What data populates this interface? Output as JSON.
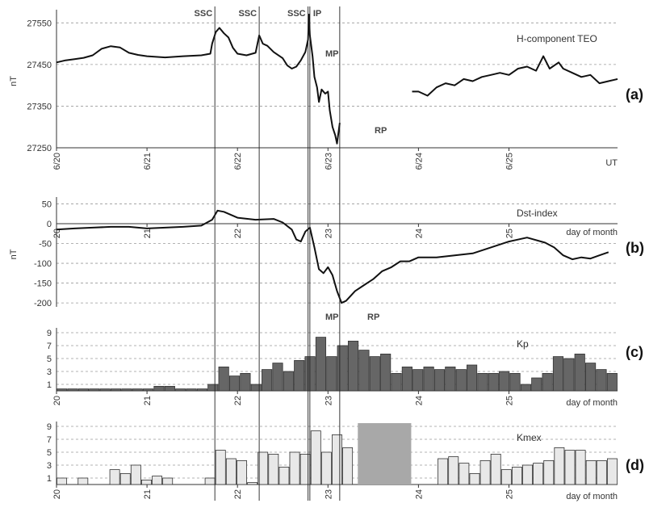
{
  "chart_data": [
    {
      "panel": "a",
      "type": "line",
      "panel_label": "(a)",
      "series_label": "H-component TEO",
      "ylabel": "nT",
      "xlabel": "UT",
      "xticks": [
        "6/20",
        "6/21",
        "6/22",
        "6/23",
        "6/24",
        "6/25"
      ],
      "ylim": [
        27250,
        27570
      ],
      "yticks": [
        27250,
        27350,
        27450,
        27550
      ],
      "grid": true,
      "series": [
        {
          "segments": [
            [
              [
                20.0,
                27455
              ],
              [
                20.1,
                27460
              ],
              [
                20.2,
                27463
              ],
              [
                20.3,
                27466
              ],
              [
                20.4,
                27472
              ],
              [
                20.5,
                27488
              ],
              [
                20.6,
                27494
              ],
              [
                20.7,
                27491
              ],
              [
                20.8,
                27478
              ],
              [
                20.9,
                27473
              ],
              [
                21.0,
                27470
              ],
              [
                21.2,
                27467
              ],
              [
                21.4,
                27470
              ],
              [
                21.6,
                27472
              ],
              [
                21.7,
                27476
              ],
              [
                21.72,
                27500
              ],
              [
                21.76,
                27528
              ],
              [
                21.8,
                27538
              ],
              [
                21.85,
                27525
              ],
              [
                21.9,
                27515
              ],
              [
                21.95,
                27490
              ],
              [
                22.0,
                27476
              ],
              [
                22.1,
                27472
              ],
              [
                22.2,
                27478
              ],
              [
                22.24,
                27520
              ],
              [
                22.28,
                27500
              ],
              [
                22.33,
                27495
              ],
              [
                22.4,
                27480
              ],
              [
                22.5,
                27465
              ],
              [
                22.55,
                27448
              ],
              [
                22.6,
                27440
              ],
              [
                22.65,
                27445
              ],
              [
                22.7,
                27460
              ],
              [
                22.75,
                27480
              ],
              [
                22.78,
                27510
              ],
              [
                22.79,
                27570
              ],
              [
                22.8,
                27520
              ],
              [
                22.83,
                27470
              ],
              [
                22.85,
                27420
              ],
              [
                22.88,
                27395
              ],
              [
                22.9,
                27360
              ],
              [
                22.93,
                27390
              ],
              [
                22.97,
                27380
              ],
              [
                23.0,
                27385
              ],
              [
                23.02,
                27340
              ],
              [
                23.05,
                27300
              ],
              [
                23.08,
                27280
              ],
              [
                23.1,
                27260
              ],
              [
                23.13,
                27310
              ]
            ],
            [
              [
                23.93,
                27385
              ],
              [
                24.0,
                27385
              ],
              [
                24.1,
                27375
              ],
              [
                24.2,
                27395
              ],
              [
                24.3,
                27405
              ],
              [
                24.4,
                27400
              ],
              [
                24.5,
                27415
              ],
              [
                24.6,
                27410
              ],
              [
                24.7,
                27420
              ],
              [
                24.8,
                27425
              ],
              [
                24.9,
                27430
              ],
              [
                25.0,
                27425
              ],
              [
                25.1,
                27440
              ],
              [
                25.2,
                27445
              ],
              [
                25.3,
                27435
              ],
              [
                25.38,
                27470
              ],
              [
                25.45,
                27440
              ],
              [
                25.55,
                27455
              ],
              [
                25.6,
                27440
              ],
              [
                25.7,
                27430
              ],
              [
                25.8,
                27420
              ],
              [
                25.9,
                27425
              ],
              [
                26.0,
                27405
              ],
              [
                26.1,
                27410
              ],
              [
                26.2,
                27415
              ]
            ]
          ]
        }
      ],
      "annotations": [
        "SSC",
        "SSC",
        "SSC",
        "IP",
        "MP",
        "RP"
      ]
    },
    {
      "panel": "b",
      "type": "line",
      "panel_label": "(b)",
      "series_label": "Dst-index",
      "ylabel": "nT",
      "xlabel": "day of month",
      "xticks": [
        "20",
        "21",
        "22",
        "23",
        "24",
        "25"
      ],
      "ylim": [
        -210,
        55
      ],
      "yticks": [
        50,
        0,
        -50,
        -100,
        -150,
        -200
      ],
      "grid": true,
      "series": [
        {
          "values": [
            [
              20.0,
              -15
            ],
            [
              20.2,
              -12
            ],
            [
              20.4,
              -10
            ],
            [
              20.6,
              -8
            ],
            [
              20.8,
              -8
            ],
            [
              21.0,
              -12
            ],
            [
              21.2,
              -10
            ],
            [
              21.4,
              -8
            ],
            [
              21.6,
              -5
            ],
            [
              21.72,
              10
            ],
            [
              21.78,
              33
            ],
            [
              21.85,
              30
            ],
            [
              22.0,
              15
            ],
            [
              22.2,
              10
            ],
            [
              22.4,
              12
            ],
            [
              22.5,
              3
            ],
            [
              22.6,
              -15
            ],
            [
              22.65,
              -40
            ],
            [
              22.7,
              -45
            ],
            [
              22.75,
              -20
            ],
            [
              22.8,
              -10
            ],
            [
              22.85,
              -60
            ],
            [
              22.9,
              -115
            ],
            [
              22.95,
              -125
            ],
            [
              23.0,
              -110
            ],
            [
              23.05,
              -130
            ],
            [
              23.1,
              -170
            ],
            [
              23.15,
              -200
            ],
            [
              23.2,
              -195
            ],
            [
              23.3,
              -170
            ],
            [
              23.4,
              -155
            ],
            [
              23.5,
              -140
            ],
            [
              23.6,
              -120
            ],
            [
              23.7,
              -110
            ],
            [
              23.8,
              -95
            ],
            [
              23.9,
              -95
            ],
            [
              24.0,
              -85
            ],
            [
              24.2,
              -85
            ],
            [
              24.4,
              -80
            ],
            [
              24.6,
              -75
            ],
            [
              24.8,
              -60
            ],
            [
              25.0,
              -45
            ],
            [
              25.2,
              -35
            ],
            [
              25.4,
              -48
            ],
            [
              25.5,
              -60
            ],
            [
              25.6,
              -80
            ],
            [
              25.7,
              -90
            ],
            [
              25.8,
              -85
            ],
            [
              25.9,
              -88
            ],
            [
              26.0,
              -80
            ],
            [
              26.1,
              -72
            ]
          ]
        }
      ],
      "annotations": [
        "MP",
        "RP"
      ]
    },
    {
      "panel": "c",
      "type": "bar",
      "panel_label": "(c)",
      "series_label": "Kp",
      "xlabel": "day of month",
      "xticks": [
        "20",
        "21",
        "22",
        "23",
        "24",
        "25"
      ],
      "ylim": [
        0,
        9
      ],
      "yticks": [
        1,
        3,
        5,
        7,
        9
      ],
      "grid": true,
      "bar_color": "#666666",
      "values": [
        0.3,
        0.3,
        0.3,
        0.3,
        0.3,
        0.3,
        0.3,
        0.3,
        0.3,
        0.7,
        0.7,
        0.3,
        0.3,
        0.3,
        1.0,
        3.7,
        2.3,
        2.7,
        1.0,
        3.3,
        4.3,
        3.0,
        4.7,
        5.3,
        8.3,
        5.3,
        7.0,
        7.7,
        6.3,
        5.3,
        5.7,
        2.7,
        3.7,
        3.3,
        3.7,
        3.3,
        3.7,
        3.3,
        4.0,
        2.7,
        2.7,
        3.0,
        2.7,
        1.0,
        2.0,
        2.7,
        5.3,
        5.0,
        5.7,
        4.3,
        3.3,
        2.7
      ]
    },
    {
      "panel": "d",
      "type": "bar",
      "panel_label": "(d)",
      "series_label": "Kmex",
      "xlabel": "day of month",
      "xticks": [
        "20",
        "21",
        "22",
        "23",
        "24",
        "25"
      ],
      "ylim": [
        0,
        9
      ],
      "yticks": [
        1,
        3,
        5,
        7,
        9
      ],
      "grid": true,
      "bar_color": "#e8e8e8",
      "gap_color": "#a8a8a8",
      "values": [
        1.0,
        0,
        1.0,
        0,
        0,
        2.3,
        1.7,
        3.0,
        0.7,
        1.3,
        1.0,
        0,
        0,
        0,
        1.0,
        5.3,
        4.0,
        3.7,
        0.3,
        5.0,
        4.7,
        2.7,
        5.0,
        4.7,
        8.3,
        5.0,
        7.7,
        5.7,
        null,
        null,
        null,
        null,
        null,
        null,
        null,
        null,
        4.0,
        4.3,
        3.3,
        1.7,
        3.7,
        4.7,
        2.3,
        2.7,
        3.0,
        3.3,
        3.7,
        5.7,
        5.3,
        5.3,
        3.7,
        3.7,
        4.0
      ],
      "gap": [
        23.33,
        23.92
      ]
    }
  ],
  "events": [
    {
      "label": "SSC",
      "day": 21.75
    },
    {
      "label": "SSC",
      "day": 22.24
    },
    {
      "label": "SSC",
      "day": 22.78
    },
    {
      "label": "IP",
      "day": 22.8
    },
    {
      "label": "",
      "day": 23.13
    }
  ]
}
